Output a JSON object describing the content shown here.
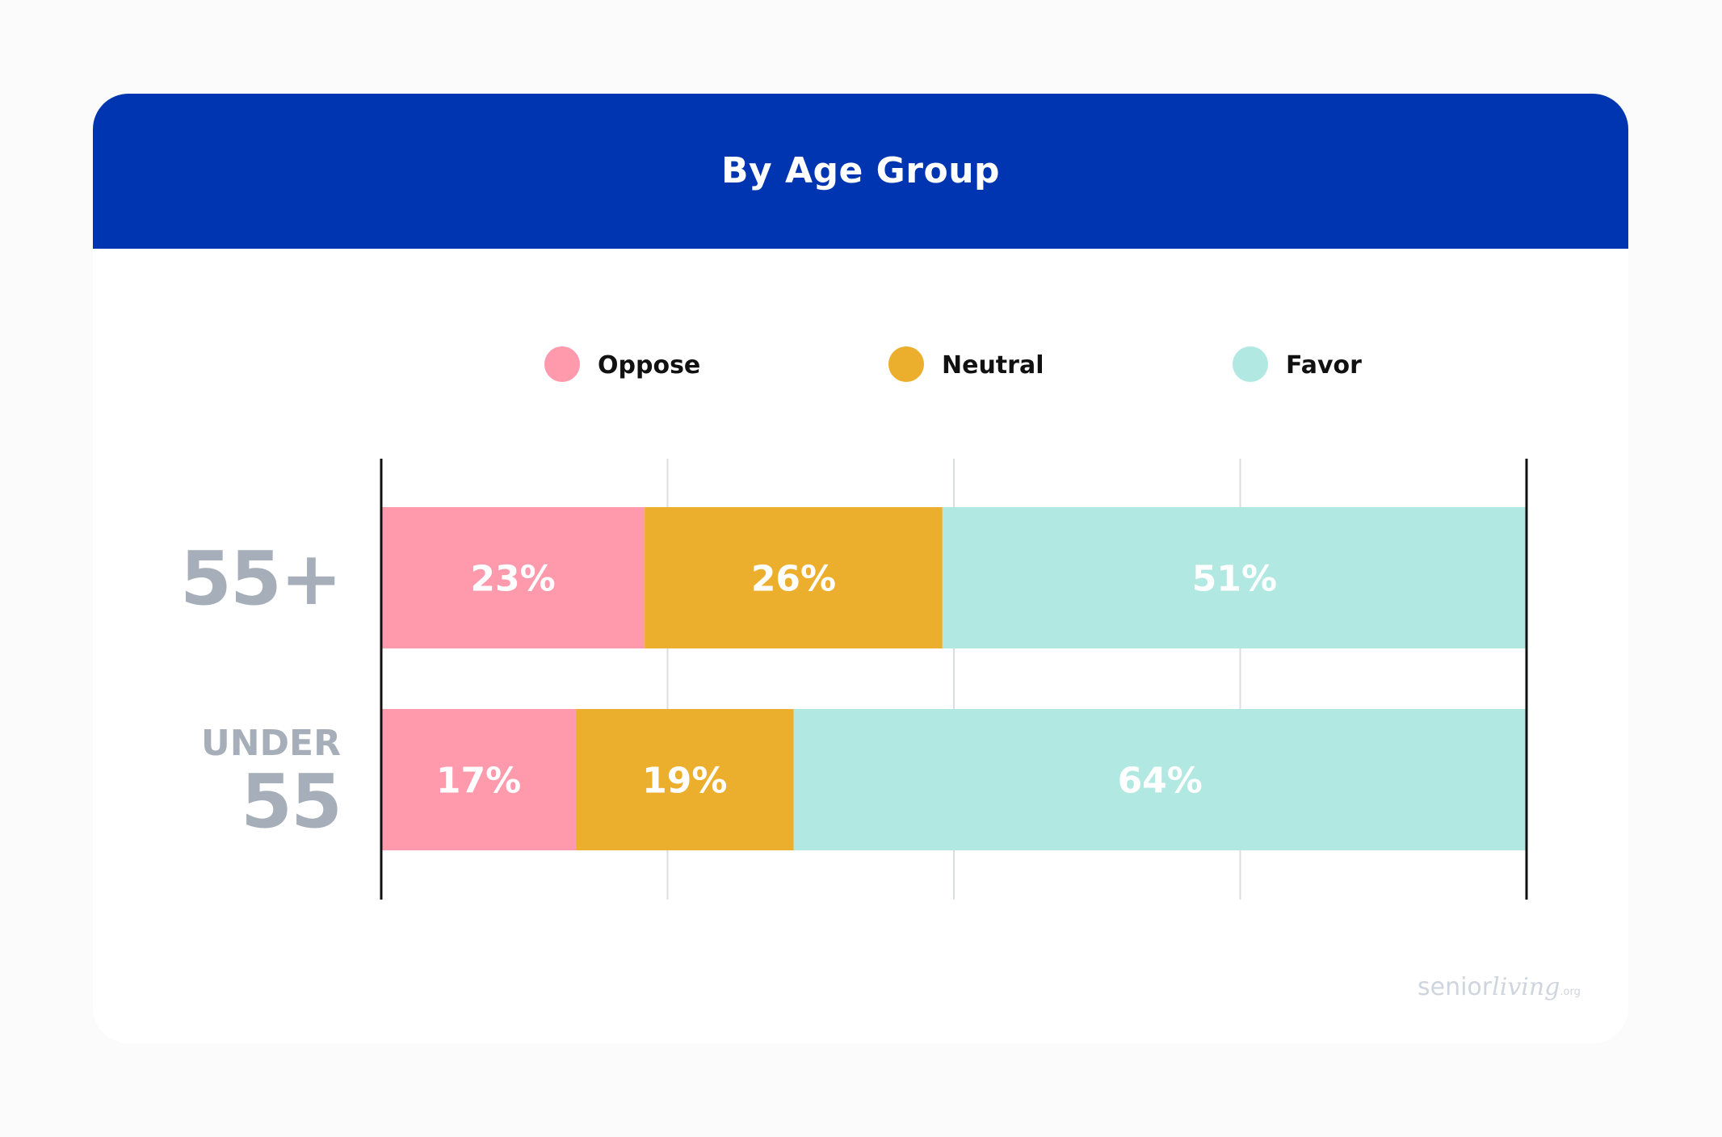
{
  "header": {
    "title": "By Age Group"
  },
  "chart_data": {
    "type": "bar",
    "orientation": "horizontal",
    "stacked": true,
    "title": "By Age Group",
    "categories": [
      "55+",
      "UNDER 55"
    ],
    "category_labels": [
      {
        "lines": [
          "55+"
        ]
      },
      {
        "lines": [
          "UNDER",
          "55"
        ]
      }
    ],
    "series": [
      {
        "name": "Oppose",
        "color": "#ff99ac",
        "values": [
          23,
          17
        ],
        "labels": [
          "23%",
          "17%"
        ]
      },
      {
        "name": "Neutral",
        "color": "#ebaf2d",
        "values": [
          26,
          19
        ],
        "labels": [
          "26%",
          "19%"
        ]
      },
      {
        "name": "Favor",
        "color": "#b1e9e2",
        "values": [
          51,
          64
        ],
        "labels": [
          "51%",
          "64%"
        ]
      }
    ],
    "xlim": [
      0,
      100
    ],
    "grid": true,
    "legend": "top-center"
  },
  "colors": {
    "header": "#0035b1",
    "category_label": "#a6aeb9",
    "grid": "#d9dee3",
    "axis": "#111111"
  },
  "logo": {
    "part1": "senior",
    "part2": "living",
    "part3": ".org"
  }
}
